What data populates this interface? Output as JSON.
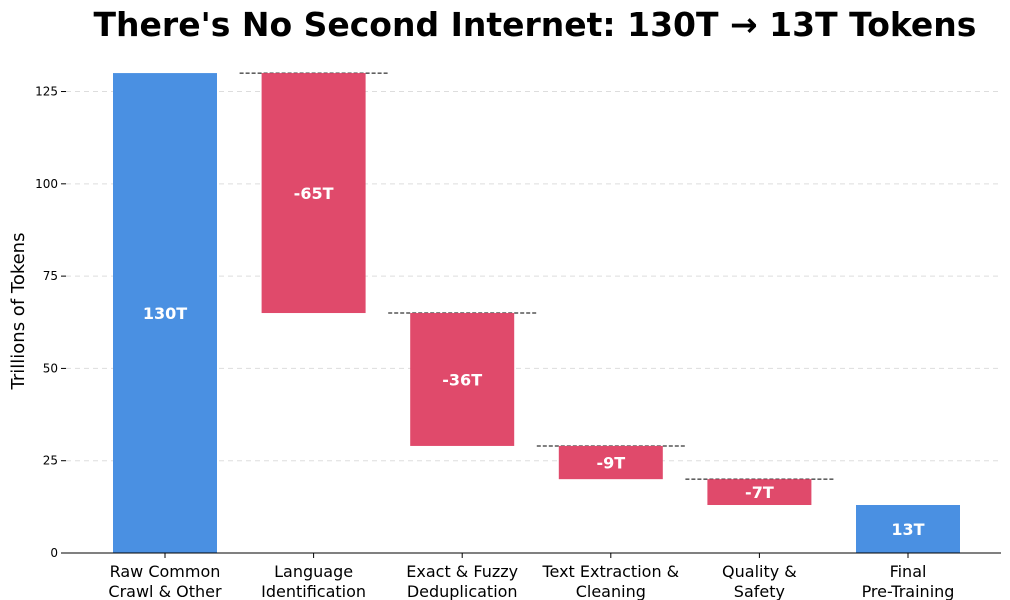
{
  "chart_data": {
    "type": "bar",
    "subtype": "waterfall",
    "title": "There's No Second Internet: 130T → 13T Tokens",
    "xlabel": "",
    "ylabel": "Trillions of Tokens",
    "ylim": [
      0,
      133
    ],
    "yticks": [
      0,
      25,
      50,
      75,
      100,
      125
    ],
    "grid": "y-dashed",
    "categories": [
      [
        "Raw Common",
        "Crawl & Other"
      ],
      [
        "Language",
        "Identification"
      ],
      [
        "Exact & Fuzzy",
        "Deduplication"
      ],
      [
        "Text Extraction &",
        "Cleaning"
      ],
      [
        "Quality &",
        "Safety"
      ],
      [
        "Final",
        "Pre-Training"
      ]
    ],
    "steps": [
      {
        "kind": "total",
        "value": 130,
        "label": "130T"
      },
      {
        "kind": "delta",
        "value": -65,
        "label": "-65T"
      },
      {
        "kind": "delta",
        "value": -36,
        "label": "-36T"
      },
      {
        "kind": "delta",
        "value": -9,
        "label": "-9T"
      },
      {
        "kind": "delta",
        "value": -7,
        "label": "-7T"
      },
      {
        "kind": "total",
        "value": 13,
        "label": "13T"
      }
    ],
    "colors": {
      "total": "#4A90E2",
      "delta": "#E04A6B",
      "connector": "#000000",
      "grid": "#dddddd"
    }
  }
}
